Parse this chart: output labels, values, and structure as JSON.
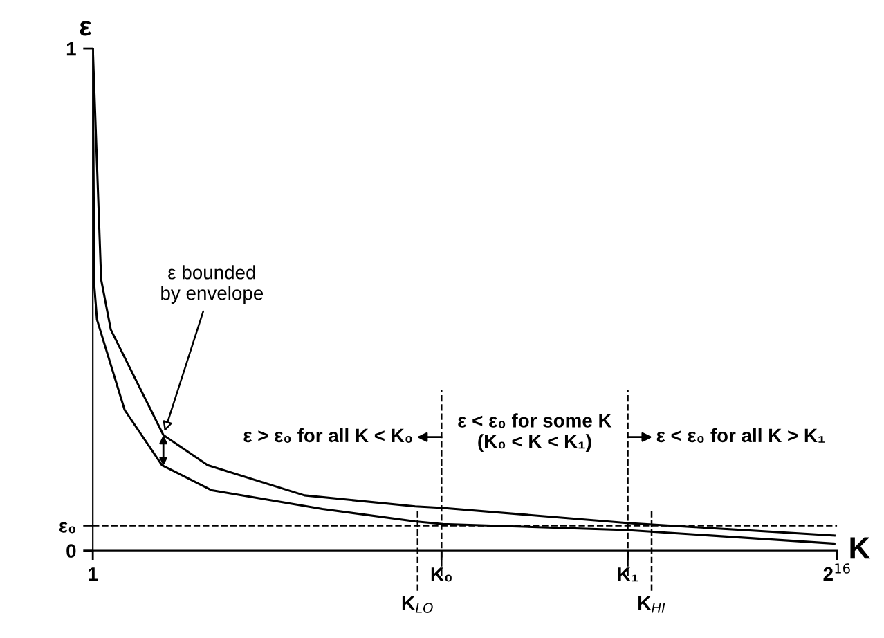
{
  "chart_data": {
    "type": "line",
    "xlabel": "K",
    "ylabel": "ε",
    "series": [
      {
        "color": "#000000",
        "x": [
          1,
          732,
          1584,
          6213,
          10111,
          18637,
          28381,
          30817,
          47017,
          65300
        ],
        "values": [
          1,
          0.54,
          0.44,
          0.23,
          0.17,
          0.11,
          0.088,
          0.085,
          0.055,
          0.03
        ]
      },
      {
        "color": "#000000",
        "x": [
          1,
          123,
          366,
          2803,
          6092,
          10477,
          20221,
          28381,
          30817,
          47017,
          65300
        ],
        "values": [
          1,
          0.53,
          0.46,
          0.28,
          0.17,
          0.12,
          0.083,
          0.058,
          0.053,
          0.041,
          0.014
        ]
      }
    ],
    "xlim": [
      1,
      65536
    ],
    "ylim": [
      0,
      1
    ],
    "xticks": [
      1,
      {
        "value": 30700,
        "label": "K₀"
      },
      {
        "value": 47100,
        "label": "K₁"
      },
      {
        "value": 65536,
        "label": "2$^{16}$"
      }
    ],
    "yticks": [
      0,
      {
        "value": 0.05,
        "label": "ε₀"
      },
      1
    ],
    "ref_lines": [
      {
        "axis": "y",
        "value": 0.05,
        "line_style": "dashed",
        "color": "#000000"
      },
      {
        "axis": "x",
        "value": 30700,
        "line_style": "dashed",
        "color": "#000000"
      },
      {
        "axis": "x",
        "value": 47100,
        "line_style": "dashed",
        "color": "#000000"
      },
      {
        "axis": "x",
        "value": 28600,
        "label": "K$_{LO}$",
        "line_style": "dashed",
        "color": "#000000"
      },
      {
        "axis": "x",
        "value": 49200,
        "label": "K$_{HI}$",
        "line_style": "dashed",
        "color": "#000000"
      }
    ],
    "annotations": [
      {
        "text": "ε bounded\nby envelope",
        "x": 6213,
        "y": 0.23
      },
      "ε > ε₀ for all K < K₀",
      "ε < ε₀ for some K\n(K₀ < K < K₁)",
      "ε < ε₀ for all K > K₁"
    ],
    "grid": false,
    "legend": false,
    "marker": "none",
    "line_style": "solid"
  }
}
